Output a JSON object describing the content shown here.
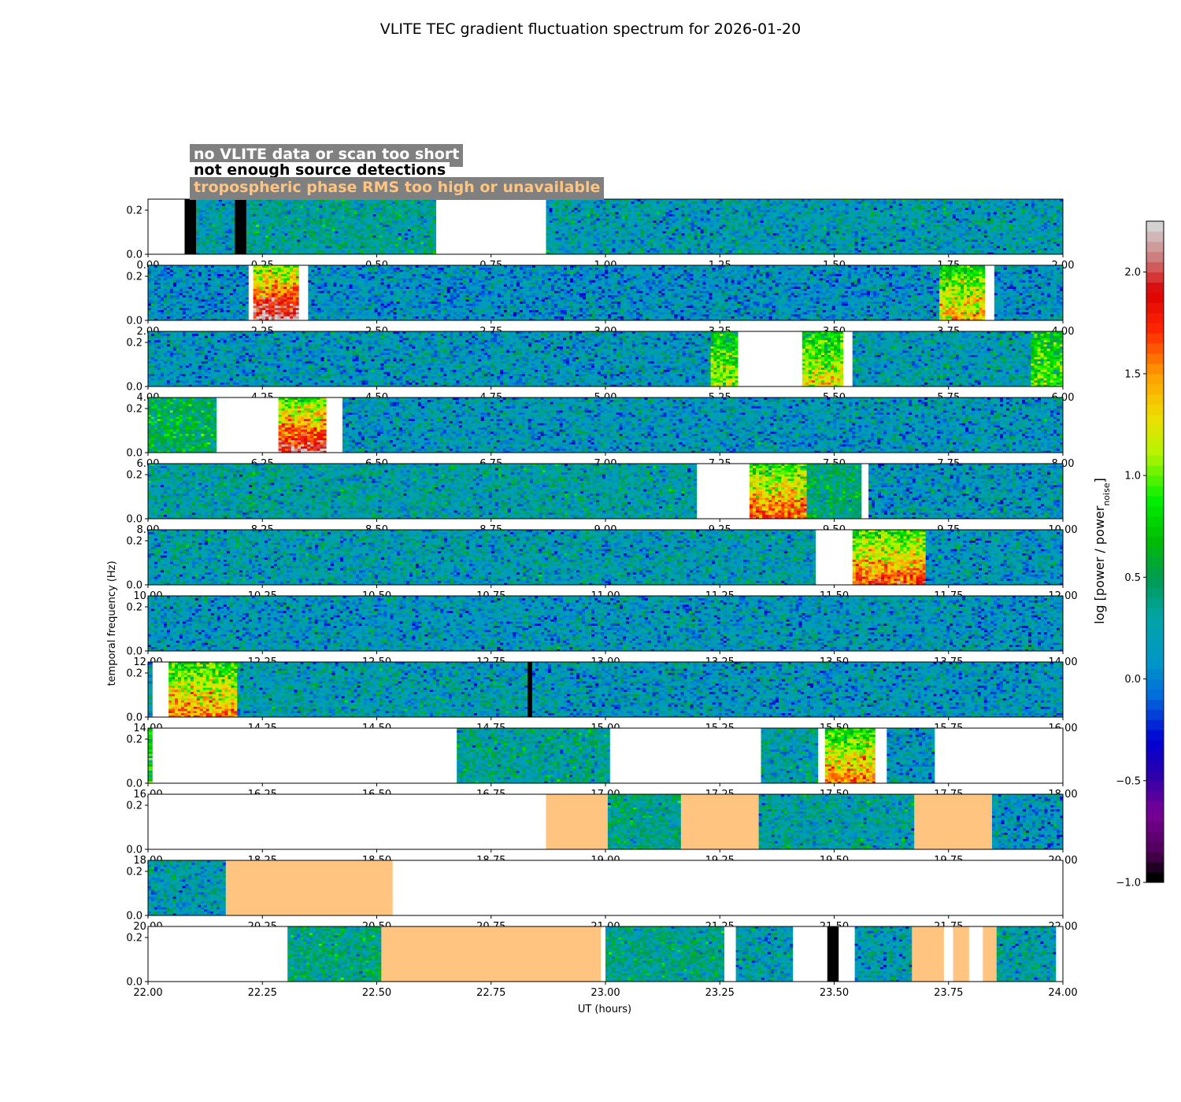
{
  "chart_data": {
    "type": "heatmap",
    "title": "VLITE TEC gradient fluctuation spectrum for 2026-01-20",
    "xlabel": "UT (hours)",
    "ylabel": "temporal frequency (Hz)",
    "colorbar": {
      "label": "log [power / power",
      "label_sub": "noise",
      "label_end": "]",
      "range": [
        -1.0,
        2.25
      ],
      "ticks": [
        "−1.0",
        "−0.5",
        "0.0",
        "0.5",
        "1.0",
        "1.5",
        "2.0"
      ],
      "tick_values": [
        -1.0,
        -0.5,
        0.0,
        0.5,
        1.0,
        1.5,
        2.0
      ]
    },
    "legend": [
      {
        "label": "no VLITE data or scan too short",
        "color": "#ffffff"
      },
      {
        "label": "not enough source detections",
        "color": "#000000"
      },
      {
        "label": "tropospheric phase RMS too high or unavailable",
        "color": "#ffc47f"
      }
    ],
    "ylim": [
      0.0,
      0.25
    ],
    "yticks": [
      "0.0",
      "0.2"
    ],
    "panels": [
      {
        "range": [
          0,
          2
        ],
        "xticks": [
          "0.00",
          "0.25",
          "0.50",
          "0.75",
          "1.00",
          "1.25",
          "1.50",
          "1.75",
          "2.00"
        ],
        "segments": [
          {
            "s": 0.0,
            "e": 0.08,
            "k": "white"
          },
          {
            "s": 0.08,
            "e": 0.105,
            "k": "black"
          },
          {
            "s": 0.105,
            "e": 0.19,
            "k": "data",
            "m": 0.2
          },
          {
            "s": 0.19,
            "e": 0.215,
            "k": "black"
          },
          {
            "s": 0.215,
            "e": 0.63,
            "k": "data",
            "m": 0.3
          },
          {
            "s": 0.63,
            "e": 0.87,
            "k": "white"
          },
          {
            "s": 0.87,
            "e": 2.0,
            "k": "data",
            "m": 0.2
          }
        ]
      },
      {
        "range": [
          2,
          4
        ],
        "xticks": [
          "2.00",
          "2.25",
          "2.50",
          "2.75",
          "3.00",
          "3.25",
          "3.50",
          "3.75",
          "4.00"
        ],
        "segments": [
          {
            "s": 2.0,
            "e": 2.22,
            "k": "data",
            "m": 0.1
          },
          {
            "s": 2.22,
            "e": 2.23,
            "k": "white"
          },
          {
            "s": 2.23,
            "e": 2.33,
            "k": "data",
            "m": 1.6
          },
          {
            "s": 2.33,
            "e": 2.35,
            "k": "white"
          },
          {
            "s": 2.35,
            "e": 3.73,
            "k": "data",
            "m": 0.1
          },
          {
            "s": 3.73,
            "e": 3.83,
            "k": "data",
            "m": 1.1
          },
          {
            "s": 3.83,
            "e": 3.85,
            "k": "white"
          },
          {
            "s": 3.85,
            "e": 4.0,
            "k": "data",
            "m": 0.1
          }
        ]
      },
      {
        "range": [
          4,
          6
        ],
        "xticks": [
          "4.00",
          "4.25",
          "4.50",
          "4.75",
          "5.00",
          "5.25",
          "5.50",
          "5.75",
          "6.00"
        ],
        "segments": [
          {
            "s": 4.0,
            "e": 5.23,
            "k": "data",
            "m": 0.15
          },
          {
            "s": 5.23,
            "e": 5.29,
            "k": "data",
            "m": 0.9
          },
          {
            "s": 5.29,
            "e": 5.43,
            "k": "white"
          },
          {
            "s": 5.43,
            "e": 5.52,
            "k": "data",
            "m": 1.0
          },
          {
            "s": 5.52,
            "e": 5.54,
            "k": "white"
          },
          {
            "s": 5.54,
            "e": 5.93,
            "k": "data",
            "m": 0.2
          },
          {
            "s": 5.93,
            "e": 6.0,
            "k": "data",
            "m": 0.8
          }
        ]
      },
      {
        "range": [
          6,
          8
        ],
        "xticks": [
          "6.00",
          "6.25",
          "6.50",
          "6.75",
          "7.00",
          "7.25",
          "7.50",
          "7.75",
          "8.00"
        ],
        "segments": [
          {
            "s": 6.0,
            "e": 6.15,
            "k": "data",
            "m": 0.5
          },
          {
            "s": 6.15,
            "e": 6.285,
            "k": "white"
          },
          {
            "s": 6.285,
            "e": 6.39,
            "k": "data",
            "m": 1.5
          },
          {
            "s": 6.39,
            "e": 6.425,
            "k": "white"
          },
          {
            "s": 6.425,
            "e": 8.0,
            "k": "data",
            "m": 0.15
          }
        ]
      },
      {
        "range": [
          8,
          10
        ],
        "xticks": [
          "8.00",
          "8.25",
          "8.50",
          "8.75",
          "9.00",
          "9.25",
          "9.50",
          "9.75",
          "10.00"
        ],
        "segments": [
          {
            "s": 8.0,
            "e": 9.2,
            "k": "data",
            "m": 0.25
          },
          {
            "s": 9.2,
            "e": 9.315,
            "k": "white"
          },
          {
            "s": 9.315,
            "e": 9.44,
            "k": "data",
            "m": 1.3
          },
          {
            "s": 9.44,
            "e": 9.56,
            "k": "data",
            "m": 0.4
          },
          {
            "s": 9.56,
            "e": 9.575,
            "k": "white"
          },
          {
            "s": 9.575,
            "e": 10.0,
            "k": "data",
            "m": 0.15
          }
        ]
      },
      {
        "range": [
          10,
          12
        ],
        "xticks": [
          "10.00",
          "10.25",
          "10.50",
          "10.75",
          "11.00",
          "11.25",
          "11.50",
          "11.75",
          "12.00"
        ],
        "segments": [
          {
            "s": 10.0,
            "e": 11.46,
            "k": "data",
            "m": 0.2
          },
          {
            "s": 11.46,
            "e": 11.54,
            "k": "white"
          },
          {
            "s": 11.54,
            "e": 11.7,
            "k": "data",
            "m": 1.3
          },
          {
            "s": 11.7,
            "e": 12.0,
            "k": "data",
            "m": 0.15
          }
        ]
      },
      {
        "range": [
          12,
          14
        ],
        "xticks": [
          "12.00",
          "12.25",
          "12.50",
          "12.75",
          "13.00",
          "13.25",
          "13.50",
          "13.75",
          "14.00"
        ],
        "segments": [
          {
            "s": 12.0,
            "e": 14.0,
            "k": "data",
            "m": 0.15
          }
        ]
      },
      {
        "range": [
          14,
          16
        ],
        "xticks": [
          "14.00",
          "14.25",
          "14.50",
          "14.75",
          "15.00",
          "15.25",
          "15.50",
          "15.75",
          "16.00"
        ],
        "segments": [
          {
            "s": 14.0,
            "e": 14.01,
            "k": "data",
            "m": 0.2
          },
          {
            "s": 14.01,
            "e": 14.045,
            "k": "white"
          },
          {
            "s": 14.045,
            "e": 14.195,
            "k": "data",
            "m": 1.2
          },
          {
            "s": 14.195,
            "e": 14.83,
            "k": "data",
            "m": 0.2
          },
          {
            "s": 14.83,
            "e": 14.84,
            "k": "black"
          },
          {
            "s": 14.84,
            "e": 16.0,
            "k": "data",
            "m": 0.15
          }
        ]
      },
      {
        "range": [
          16,
          18
        ],
        "xticks": [
          "16.00",
          "16.25",
          "16.50",
          "16.75",
          "17.00",
          "17.25",
          "17.50",
          "17.75",
          "18.00"
        ],
        "segments": [
          {
            "s": 16.0,
            "e": 16.01,
            "k": "data",
            "m": 0.8
          },
          {
            "s": 16.01,
            "e": 16.675,
            "k": "white"
          },
          {
            "s": 16.675,
            "e": 17.01,
            "k": "data",
            "m": 0.3
          },
          {
            "s": 17.01,
            "e": 17.34,
            "k": "white"
          },
          {
            "s": 17.34,
            "e": 17.465,
            "k": "data",
            "m": 0.25
          },
          {
            "s": 17.465,
            "e": 17.48,
            "k": "white"
          },
          {
            "s": 17.48,
            "e": 17.59,
            "k": "data",
            "m": 1.2
          },
          {
            "s": 17.59,
            "e": 17.615,
            "k": "white"
          },
          {
            "s": 17.615,
            "e": 17.72,
            "k": "data",
            "m": 0.15
          },
          {
            "s": 17.72,
            "e": 18.0,
            "k": "white"
          }
        ]
      },
      {
        "range": [
          18,
          20
        ],
        "xticks": [
          "18.00",
          "18.25",
          "18.50",
          "18.75",
          "19.00",
          "19.25",
          "19.50",
          "19.75",
          "20.00"
        ],
        "segments": [
          {
            "s": 18.0,
            "e": 18.87,
            "k": "white"
          },
          {
            "s": 18.87,
            "e": 19.005,
            "k": "orange"
          },
          {
            "s": 19.005,
            "e": 19.165,
            "k": "data",
            "m": 0.35
          },
          {
            "s": 19.165,
            "e": 19.335,
            "k": "orange"
          },
          {
            "s": 19.335,
            "e": 19.675,
            "k": "data",
            "m": 0.25
          },
          {
            "s": 19.675,
            "e": 19.845,
            "k": "orange"
          },
          {
            "s": 19.845,
            "e": 20.0,
            "k": "data",
            "m": 0.15
          }
        ]
      },
      {
        "range": [
          20,
          22
        ],
        "xticks": [
          "20.00",
          "20.25",
          "20.50",
          "20.75",
          "21.00",
          "21.25",
          "21.50",
          "21.75",
          "22.00"
        ],
        "segments": [
          {
            "s": 20.0,
            "e": 20.17,
            "k": "data",
            "m": 0.2
          },
          {
            "s": 20.17,
            "e": 20.535,
            "k": "orange"
          },
          {
            "s": 20.535,
            "e": 22.0,
            "k": "white"
          }
        ]
      },
      {
        "range": [
          22,
          24
        ],
        "xticks": [
          "22.00",
          "22.25",
          "22.50",
          "22.75",
          "23.00",
          "23.25",
          "23.50",
          "23.75",
          "24.00"
        ],
        "segments": [
          {
            "s": 22.0,
            "e": 22.305,
            "k": "white"
          },
          {
            "s": 22.305,
            "e": 22.51,
            "k": "data",
            "m": 0.35
          },
          {
            "s": 22.51,
            "e": 22.99,
            "k": "orange"
          },
          {
            "s": 22.99,
            "e": 23.0,
            "k": "white"
          },
          {
            "s": 23.0,
            "e": 23.26,
            "k": "data",
            "m": 0.35
          },
          {
            "s": 23.26,
            "e": 23.285,
            "k": "white"
          },
          {
            "s": 23.285,
            "e": 23.41,
            "k": "data",
            "m": 0.2
          },
          {
            "s": 23.41,
            "e": 23.485,
            "k": "white"
          },
          {
            "s": 23.485,
            "e": 23.51,
            "k": "black"
          },
          {
            "s": 23.51,
            "e": 23.545,
            "k": "white"
          },
          {
            "s": 23.545,
            "e": 23.67,
            "k": "data",
            "m": 0.2
          },
          {
            "s": 23.67,
            "e": 23.74,
            "k": "orange"
          },
          {
            "s": 23.74,
            "e": 23.76,
            "k": "white"
          },
          {
            "s": 23.76,
            "e": 23.795,
            "k": "orange"
          },
          {
            "s": 23.795,
            "e": 23.825,
            "k": "white"
          },
          {
            "s": 23.825,
            "e": 23.855,
            "k": "orange"
          },
          {
            "s": 23.855,
            "e": 23.985,
            "k": "data",
            "m": 0.25
          },
          {
            "s": 23.985,
            "e": 24.0,
            "k": "white"
          }
        ]
      }
    ]
  }
}
